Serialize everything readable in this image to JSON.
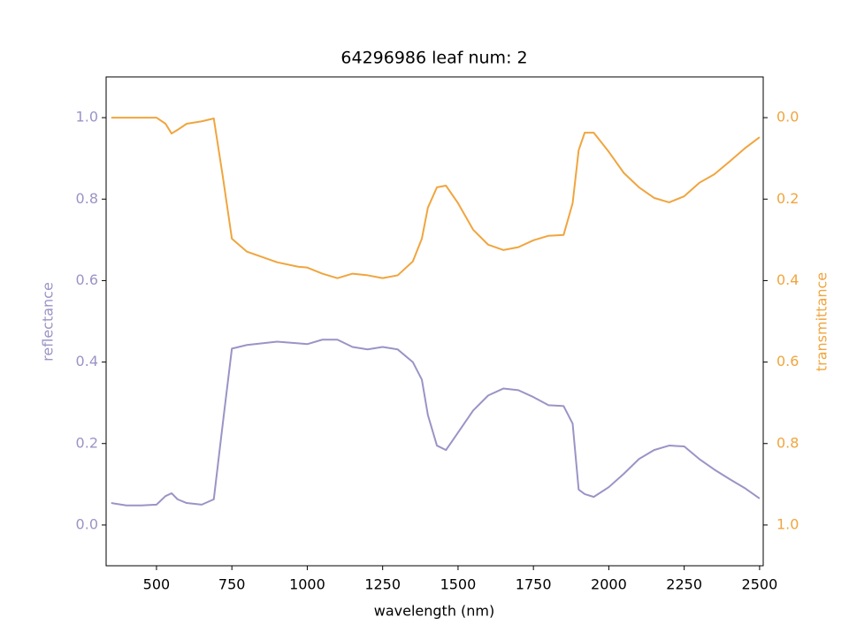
{
  "chart_data": {
    "type": "line",
    "title": "64296986 leaf num: 2",
    "x_label": "wavelength (nm)",
    "y_label": "reflectance",
    "y2_label": "transmittance",
    "x": [
      350,
      400,
      450,
      500,
      530,
      550,
      570,
      600,
      650,
      690,
      720,
      750,
      800,
      900,
      970,
      1000,
      1050,
      1100,
      1150,
      1200,
      1250,
      1300,
      1350,
      1380,
      1400,
      1430,
      1460,
      1500,
      1550,
      1600,
      1650,
      1700,
      1750,
      1800,
      1850,
      1880,
      1900,
      1920,
      1950,
      2000,
      2050,
      2100,
      2150,
      2200,
      2250,
      2300,
      2350,
      2400,
      2450,
      2500
    ],
    "series": [
      {
        "name": "reflectance",
        "color": "#9a94c6",
        "axis": "y",
        "values": [
          0.054,
          0.048,
          0.048,
          0.05,
          0.071,
          0.078,
          0.063,
          0.054,
          0.05,
          0.063,
          0.25,
          0.433,
          0.442,
          0.45,
          0.446,
          0.444,
          0.455,
          0.455,
          0.437,
          0.431,
          0.437,
          0.431,
          0.4,
          0.357,
          0.27,
          0.195,
          0.184,
          0.227,
          0.281,
          0.318,
          0.335,
          0.331,
          0.314,
          0.294,
          0.292,
          0.249,
          0.087,
          0.076,
          0.069,
          0.093,
          0.126,
          0.162,
          0.184,
          0.195,
          0.193,
          0.162,
          0.136,
          0.113,
          0.091,
          0.065
        ]
      },
      {
        "name": "transmittance",
        "color": "#f0a53e",
        "axis": "y2",
        "values": [
          0.0,
          0.0,
          0.0,
          0.0,
          0.015,
          0.039,
          0.03,
          0.015,
          0.009,
          0.002,
          0.145,
          0.297,
          0.329,
          0.355,
          0.366,
          0.368,
          0.383,
          0.394,
          0.383,
          0.387,
          0.394,
          0.387,
          0.353,
          0.297,
          0.221,
          0.171,
          0.167,
          0.21,
          0.275,
          0.312,
          0.325,
          0.318,
          0.301,
          0.29,
          0.288,
          0.21,
          0.08,
          0.037,
          0.037,
          0.084,
          0.136,
          0.171,
          0.197,
          0.208,
          0.193,
          0.16,
          0.139,
          0.108,
          0.076,
          0.048
        ]
      }
    ],
    "xlim": [
      333,
      2512
    ],
    "xticks": [
      500,
      750,
      1000,
      1250,
      1500,
      1750,
      2000,
      2250,
      2500
    ],
    "ylim": [
      -0.1,
      1.1
    ],
    "yticks": [
      {
        "value": 0,
        "label": "0.0"
      },
      0.2,
      0.4,
      0.6,
      0.8,
      {
        "value": 1,
        "label": "1.0"
      }
    ],
    "y2lim": [
      1.1,
      -0.1
    ],
    "y2ticks": [
      {
        "value": 0,
        "label": "0.0"
      },
      0.2,
      0.4,
      0.6,
      0.8,
      {
        "value": 1,
        "label": "1.0"
      }
    ]
  }
}
